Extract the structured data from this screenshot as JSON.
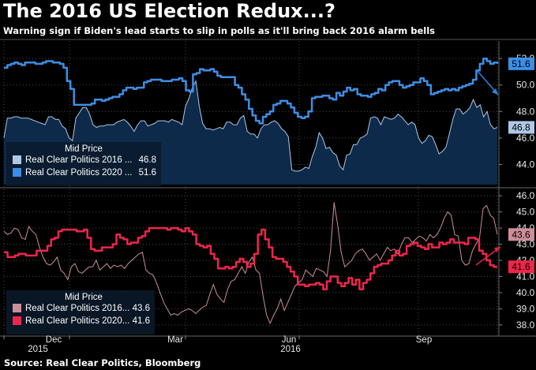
{
  "title": "The 2016 US Election Redux...?",
  "subtitle": "Warning sign if Biden's lead starts to slip in polls as it'll bring back 2016 alarm bells",
  "source": "Source: Real Clear Politics, Bloomberg",
  "colors": {
    "blue2020": "#3d8fe6",
    "blue2016": "#aec8e6",
    "area2016": "#0d2a4a",
    "red2020": "#f0254a",
    "red2016": "#cc8e97",
    "grid": "#4a4a4a",
    "arrowBlue": "#2f83e0",
    "arrowRed": "#e0233f"
  },
  "chart_data": [
    {
      "type": "line",
      "title": "Mid Price",
      "ylim": [
        42.6,
        53.2
      ],
      "yticks": [
        "44.0",
        "46.0",
        "48.0",
        "50.0",
        "52.0"
      ],
      "legend": {
        "title": "Mid Price",
        "entries": [
          {
            "name": "Real Clear Politics 2016 ...",
            "value": "46.8"
          },
          {
            "name": "Real Clear Politics 2020 ...",
            "value": "51.6"
          }
        ]
      },
      "series": [
        {
          "name": "Real Clear Politics 2020",
          "last_label": "51.6",
          "values": [
            51.3,
            51.5,
            51.6,
            51.7,
            51.6,
            51.5,
            51.7,
            51.7,
            51.7,
            51.6,
            51.6,
            51.7,
            51.8,
            51.8,
            51.7,
            51.7,
            51.6,
            51.3,
            50.3,
            49.7,
            48.5,
            48.5,
            48.5,
            48.5,
            48.5,
            48.6,
            48.9,
            48.9,
            48.8,
            48.9,
            49.0,
            49.1,
            49.1,
            49.3,
            49.6,
            49.8,
            49.8,
            49.7,
            49.8,
            49.8,
            50.2,
            50.3,
            50.4,
            50.4,
            50.4,
            50.3,
            50.3,
            50.3,
            50.4,
            50.4,
            50.5,
            50.3,
            49.6,
            49.5,
            50.8,
            50.9,
            51.2,
            51.1,
            51.1,
            51.2,
            51.0,
            50.7,
            50.6,
            50.6,
            50.6,
            50.6,
            50.0,
            49.8,
            49.3,
            48.9,
            48.2,
            47.7,
            47.3,
            47.1,
            47.6,
            47.8,
            48.0,
            48.5,
            48.6,
            48.8,
            48.8,
            48.6,
            48.3,
            47.9,
            47.6,
            47.5,
            47.6,
            48.0,
            49.0,
            49.1,
            49.1,
            49.2,
            49.2,
            49.0,
            48.9,
            49.4,
            49.2,
            49.5,
            49.8,
            49.6,
            49.7,
            49.3,
            49.2,
            49.2,
            49.1,
            49.3,
            49.4,
            49.7,
            49.6,
            50.0,
            50.2,
            50.3,
            50.3,
            50.0,
            49.8,
            49.9,
            50.0,
            50.2,
            50.2,
            50.5,
            50.3,
            50.0,
            49.3,
            49.4,
            49.5,
            49.6,
            49.7,
            49.6,
            49.7,
            49.6,
            49.8,
            49.9,
            50.0,
            50.1,
            50.4,
            51.1,
            51.6,
            52.0,
            51.8,
            51.6,
            51.7,
            51.6
          ]
        },
        {
          "name": "Real Clear Politics 2016",
          "last_label": "46.8",
          "values": [
            46.0,
            47.5,
            47.5,
            47.6,
            47.6,
            47.5,
            47.5,
            47.5,
            47.4,
            47.3,
            47.2,
            47.1,
            47.0,
            47.6,
            47.6,
            47.4,
            47.4,
            46.9,
            46.7,
            46.0,
            45.8,
            47.5,
            47.9,
            48.3,
            48.3,
            47.8,
            47.0,
            46.8,
            46.9,
            46.9,
            47.0,
            47.0,
            47.0,
            47.2,
            47.3,
            47.4,
            47.2,
            46.9,
            46.5,
            47.0,
            47.3,
            47.3,
            46.9,
            47.0,
            47.1,
            47.3,
            47.3,
            47.3,
            47.2,
            47.4,
            47.3,
            47.2,
            47.0,
            48.4,
            49.0,
            49.8,
            50.3,
            48.4,
            47.1,
            46.7,
            46.7,
            46.6,
            46.7,
            46.8,
            46.7,
            47.2,
            47.2,
            47.0,
            47.0,
            47.5,
            47.7,
            46.5,
            46.3,
            46.3,
            46.0,
            46.7,
            47.0,
            47.0,
            47.2,
            47.3,
            47.1,
            46.7,
            46.5,
            46.1,
            43.6,
            43.5,
            43.5,
            43.6,
            43.8,
            43.7,
            44.6,
            45.3,
            46.4,
            46.0,
            45.2,
            45.3,
            44.9,
            44.7,
            43.9,
            43.6,
            44.7,
            44.8,
            45.5,
            45.5,
            46.0,
            46.1,
            46.3,
            47.5,
            47.6,
            47.5,
            47.0,
            47.6,
            47.5,
            47.4,
            47.5,
            47.8,
            47.6,
            47.3,
            47.0,
            47.2,
            47.0,
            46.0,
            45.6,
            45.8,
            46.2,
            46.1,
            45.5,
            44.8,
            45.0,
            45.3,
            46.3,
            47.4,
            48.2,
            48.2,
            47.8,
            48.0,
            48.3,
            48.9,
            48.3,
            48.5,
            47.6,
            48.0,
            47.0,
            46.7,
            46.8
          ]
        }
      ]
    },
    {
      "type": "line",
      "title": "Mid Price",
      "ylim": [
        37.6,
        46.4
      ],
      "yticks": [
        "38.0",
        "39.0",
        "40.0",
        "41.0",
        "42.0",
        "43.0",
        "44.0",
        "45.0",
        "46.0"
      ],
      "legend": {
        "title": "Mid Price",
        "entries": [
          {
            "name": "Real Clear Politics 2016...",
            "value": "43.6"
          },
          {
            "name": "Real Clear Politics 2020...",
            "value": "41.6"
          }
        ]
      },
      "series": [
        {
          "name": "Real Clear Politics 2016",
          "last_label": "43.6",
          "values": [
            43.8,
            43.6,
            43.7,
            44.0,
            43.9,
            43.4,
            43.3,
            44.1,
            43.8,
            43.6,
            42.8,
            42.2,
            41.8,
            41.7,
            41.9,
            42.2,
            41.4,
            41.2,
            40.8,
            41.6,
            41.8,
            41.3,
            41.2,
            41.4,
            41.6,
            41.6,
            42.0,
            41.4,
            41.6,
            41.8,
            41.5,
            41.7,
            41.6,
            41.7,
            41.5,
            41.8,
            42.0,
            42.2,
            42.4,
            42.5,
            41.4,
            41.2,
            41.1,
            40.6,
            40.0,
            39.4,
            39.0,
            38.6,
            38.7,
            38.6,
            38.8,
            38.9,
            39.0,
            38.9,
            38.7,
            38.9,
            39.1,
            39.2,
            39.9,
            40.5,
            39.9,
            39.6,
            39.4,
            40.2,
            40.7,
            40.8,
            41.2,
            41.6,
            41.2,
            41.9,
            42.2,
            41.4,
            41.2,
            39.8,
            38.6,
            38.1,
            38.6,
            39.0,
            39.6,
            38.9,
            39.4,
            39.9,
            40.4,
            40.6,
            40.8,
            41.4,
            41.2,
            41.0,
            41.5,
            41.4,
            41.3,
            41.0,
            42.6,
            45.6,
            44.2,
            42.5,
            41.6,
            41.8,
            42.0,
            42.4,
            42.6,
            42.7,
            42.4,
            42.0,
            42.2,
            42.4,
            42.0,
            42.4,
            42.8,
            42.6,
            42.7,
            42.4,
            43.0,
            43.4,
            43.4,
            43.1,
            43.3,
            43.5,
            43.4,
            43.2,
            43.6,
            43.4,
            43.6,
            44.0,
            44.6,
            45.0,
            44.8,
            43.6,
            43.5,
            42.0,
            41.7,
            41.8,
            42.6,
            43.0,
            43.4,
            45.2,
            45.4,
            44.8,
            44.6,
            43.6
          ]
        },
        {
          "name": "Real Clear Politics 2020",
          "last_label": "41.6",
          "values": [
            42.5,
            42.2,
            42.2,
            42.3,
            42.4,
            42.4,
            42.3,
            42.3,
            42.3,
            42.6,
            42.6,
            42.6,
            42.9,
            43.3,
            43.4,
            43.8,
            43.9,
            43.9,
            43.9,
            43.9,
            43.8,
            43.8,
            43.9,
            43.4,
            42.7,
            42.6,
            42.6,
            42.8,
            42.8,
            42.8,
            43.0,
            43.6,
            43.4,
            43.3,
            43.0,
            43.1,
            43.1,
            43.4,
            43.5,
            43.8,
            44.0,
            44.0,
            44.0,
            44.0,
            44.0,
            43.9,
            44.0,
            44.0,
            43.9,
            43.8,
            44.0,
            43.8,
            43.6,
            43.0,
            42.9,
            42.8,
            42.9,
            42.4,
            42.1,
            41.5,
            41.5,
            41.6,
            41.5,
            41.6,
            41.9,
            42.1,
            41.9,
            41.6,
            41.8,
            42.4,
            43.6,
            43.9,
            43.3,
            42.8,
            42.2,
            42.1,
            42.1,
            41.9,
            41.6,
            41.3,
            41.0,
            40.5,
            40.5,
            40.4,
            40.5,
            40.5,
            40.6,
            40.5,
            40.2,
            40.7,
            41.0,
            41.0,
            40.6,
            40.4,
            40.6,
            40.9,
            40.5,
            40.8,
            40.2,
            40.6,
            40.8,
            41.2,
            41.6,
            41.7,
            41.8,
            41.8,
            42.0,
            42.3,
            42.6,
            42.3,
            42.4,
            42.9,
            43.0,
            43.1,
            42.9,
            42.8,
            42.7,
            43.0,
            42.8,
            42.8,
            43.1,
            43.0,
            43.1,
            43.3,
            43.1,
            43.1,
            43.1,
            43.0,
            43.4,
            43.4,
            43.3,
            42.6,
            42.4,
            42.0,
            41.7,
            41.6,
            41.6
          ]
        }
      ]
    }
  ],
  "xaxis": {
    "months": [
      "Dec",
      "Mar",
      "Jun",
      "Sep"
    ],
    "years": [
      "2015",
      "2016"
    ]
  }
}
